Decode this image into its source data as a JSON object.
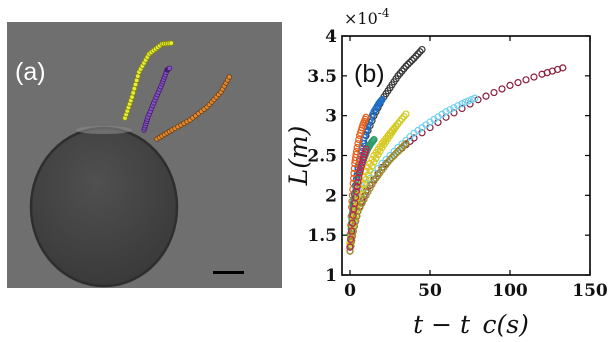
{
  "panel_a": {
    "label": "(a)",
    "colors": {
      "background": "#6f6f6f",
      "drop_fill": "#434343",
      "drop_rim": "#2e2e2e",
      "scale_bar": "#000000"
    },
    "tracks": [
      {
        "color": "#e6ee3a",
        "edge": "#8a8c00"
      },
      {
        "color": "#8a52c8",
        "edge": "#3e1f6a"
      },
      {
        "color": "#e48a2e",
        "edge": "#6e3b10"
      }
    ]
  },
  "chart_data": {
    "type": "scatter",
    "panel_label": "(b)",
    "xlabel": "t − t_c(s)",
    "ylabel": "L(m)",
    "y_multiplier": "×10",
    "y_multiplier_exp": "-4",
    "xlim": [
      -5,
      150
    ],
    "ylim": [
      1,
      4
    ],
    "xticks": [
      0,
      50,
      100,
      150
    ],
    "yticks": [
      1,
      1.5,
      2,
      2.5,
      3,
      3.5,
      4
    ],
    "ytick_labels": [
      "1",
      "1.5",
      "2",
      "2.5",
      "3",
      "3.5",
      "4"
    ],
    "grid": false,
    "series": [
      {
        "color": "#8b1a3a",
        "x": [
          0,
          2,
          5,
          10,
          20,
          30,
          40,
          60,
          80,
          100,
          120,
          133
        ],
        "y": [
          1.3,
          1.55,
          1.8,
          2.05,
          2.35,
          2.55,
          2.72,
          2.98,
          3.2,
          3.38,
          3.52,
          3.6
        ]
      },
      {
        "color": "#333333",
        "x": [
          0,
          2,
          5,
          10,
          15,
          20,
          25,
          30,
          35,
          40,
          45
        ],
        "y": [
          1.35,
          1.9,
          2.35,
          2.75,
          3.0,
          3.2,
          3.35,
          3.5,
          3.62,
          3.72,
          3.83
        ]
      },
      {
        "color": "#6fd0f0",
        "x": [
          0,
          2,
          5,
          10,
          20,
          30,
          40,
          50,
          60,
          70,
          78
        ],
        "y": [
          1.3,
          1.6,
          1.9,
          2.15,
          2.4,
          2.6,
          2.78,
          2.92,
          3.05,
          3.15,
          3.22
        ]
      },
      {
        "color": "#1f6fc8",
        "x": [
          0,
          2,
          4,
          6,
          8,
          10,
          12,
          15,
          18,
          20
        ],
        "y": [
          1.35,
          1.85,
          2.2,
          2.45,
          2.65,
          2.8,
          2.92,
          3.05,
          3.15,
          3.2
        ]
      },
      {
        "color": "#e8601c",
        "x": [
          0,
          1,
          2,
          3,
          4,
          6,
          8,
          10
        ],
        "y": [
          1.4,
          1.85,
          2.15,
          2.4,
          2.55,
          2.75,
          2.88,
          2.98
        ]
      },
      {
        "color": "#2e9a6a",
        "x": [
          0,
          1,
          2,
          3,
          5,
          7,
          9,
          11,
          13,
          15
        ],
        "y": [
          1.35,
          1.65,
          1.85,
          2.0,
          2.2,
          2.35,
          2.48,
          2.58,
          2.65,
          2.7
        ]
      },
      {
        "color": "#e8c21a",
        "x": [
          0,
          2,
          5,
          10,
          15,
          20,
          25,
          30
        ],
        "y": [
          1.4,
          1.7,
          2.0,
          2.3,
          2.5,
          2.65,
          2.78,
          2.9
        ]
      },
      {
        "color": "#cccc22",
        "x": [
          0,
          3,
          6,
          10,
          15,
          20,
          25,
          30,
          35
        ],
        "y": [
          1.3,
          1.7,
          1.95,
          2.2,
          2.42,
          2.6,
          2.75,
          2.9,
          3.02
        ]
      },
      {
        "color": "#9a8a2a",
        "x": [
          0,
          2,
          5,
          10,
          15,
          20,
          25,
          30,
          35
        ],
        "y": [
          1.3,
          1.55,
          1.8,
          2.0,
          2.18,
          2.32,
          2.45,
          2.55,
          2.65
        ]
      },
      {
        "color": "#c02050",
        "x": [
          0,
          2,
          4,
          6,
          8,
          10
        ],
        "y": [
          1.35,
          1.75,
          2.05,
          2.28,
          2.45,
          2.58
        ]
      }
    ]
  }
}
